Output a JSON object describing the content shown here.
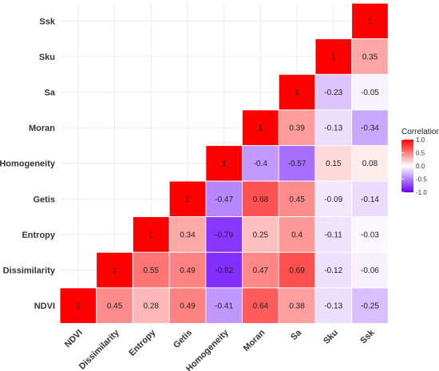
{
  "chart_data": {
    "type": "heatmap",
    "title": "",
    "xlabel": "",
    "ylabel": "",
    "variables": [
      "NDVI",
      "Dissimilarity",
      "Entropy",
      "Getis",
      "Homogeneity",
      "Moran",
      "Sa",
      "Sku",
      "Ssk"
    ],
    "matrix": [
      [
        1,
        null,
        null,
        null,
        null,
        null,
        null,
        null,
        null
      ],
      [
        0.45,
        1,
        null,
        null,
        null,
        null,
        null,
        null,
        null
      ],
      [
        0.28,
        0.55,
        1,
        null,
        null,
        null,
        null,
        null,
        null
      ],
      [
        0.49,
        0.49,
        0.34,
        1,
        null,
        null,
        null,
        null,
        null
      ],
      [
        -0.41,
        -0.82,
        -0.79,
        -0.47,
        1,
        null,
        null,
        null,
        null
      ],
      [
        0.64,
        0.47,
        0.25,
        0.68,
        -0.4,
        1,
        null,
        null,
        null
      ],
      [
        0.38,
        0.69,
        0.4,
        0.45,
        -0.57,
        0.39,
        1,
        null,
        null
      ],
      [
        -0.13,
        -0.12,
        -0.11,
        -0.09,
        0.15,
        -0.13,
        -0.23,
        1,
        null
      ],
      [
        -0.25,
        -0.06,
        -0.03,
        -0.14,
        0.08,
        -0.34,
        -0.05,
        0.35,
        1
      ]
    ],
    "legend": {
      "title": "Correlation",
      "ticks": [
        "1.0",
        "0.5",
        "0.0",
        "-0.5",
        "-1.0"
      ],
      "tick_values": [
        1.0,
        0.5,
        0.0,
        -0.5,
        -1.0
      ],
      "range": [
        -1,
        1
      ],
      "placement": "right"
    },
    "colors": {
      "high": "#ff0000",
      "mid": "#ffffff",
      "low": "#6600ff",
      "grid": "#ebebeb",
      "text": "#333333"
    },
    "grid": true
  }
}
